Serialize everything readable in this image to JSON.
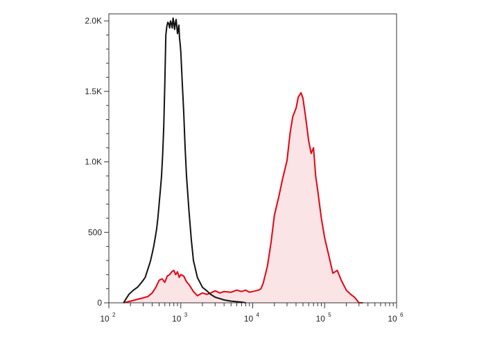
{
  "chart_data": {
    "type": "area",
    "x_scale": "log10",
    "xlim": [
      100,
      1000000
    ],
    "ylim": [
      0,
      2050
    ],
    "grid": false,
    "legend": "none",
    "xlabel": "",
    "ylabel": "",
    "y_ticks": [
      {
        "value": 0,
        "label": "0"
      },
      {
        "value": 500,
        "label": "500"
      },
      {
        "value": 1000,
        "label": "1.0K"
      },
      {
        "value": 1500,
        "label": "1.5K"
      },
      {
        "value": 2000,
        "label": "2.0K"
      }
    ],
    "x_ticks": [
      {
        "value": 100,
        "base": "10",
        "exp": "2"
      },
      {
        "value": 1000,
        "base": "10",
        "exp": "3"
      },
      {
        "value": 10000,
        "base": "10",
        "exp": "4"
      },
      {
        "value": 100000,
        "base": "10",
        "exp": "5"
      },
      {
        "value": 1000000,
        "base": "10",
        "exp": "6"
      }
    ],
    "series": [
      {
        "color": "#e8000f",
        "fill": "#fbe4e6",
        "filled": true,
        "x": [
          160,
          200,
          250,
          300,
          350,
          400,
          450,
          500,
          550,
          600,
          650,
          700,
          750,
          800,
          850,
          900,
          950,
          1000,
          1100,
          1200,
          1300,
          1500,
          1700,
          2000,
          2300,
          2600,
          3000,
          3500,
          4000,
          5000,
          6000,
          7000,
          8000,
          9000,
          10000,
          11000,
          12000,
          13000,
          14000,
          16000,
          18000,
          20000,
          23000,
          26000,
          30000,
          33000,
          36000,
          40000,
          43000,
          47000,
          50000,
          55000,
          60000,
          65000,
          70000,
          75000,
          80000,
          90000,
          100000,
          115000,
          130000,
          150000,
          170000,
          200000,
          230000,
          260000,
          300000,
          340000
        ],
        "y": [
          0,
          12,
          25,
          35,
          45,
          70,
          110,
          160,
          170,
          145,
          190,
          200,
          220,
          230,
          200,
          220,
          180,
          200,
          190,
          150,
          130,
          80,
          50,
          70,
          60,
          70,
          85,
          70,
          80,
          75,
          90,
          80,
          90,
          75,
          80,
          85,
          90,
          100,
          140,
          260,
          430,
          620,
          750,
          880,
          1010,
          1200,
          1320,
          1380,
          1460,
          1490,
          1450,
          1300,
          1150,
          1060,
          1100,
          900,
          800,
          600,
          460,
          330,
          210,
          230,
          160,
          90,
          60,
          40,
          0,
          0
        ]
      },
      {
        "color": "#111111",
        "fill": "none",
        "filled": false,
        "x": [
          160,
          190,
          220,
          250,
          280,
          300,
          320,
          340,
          360,
          380,
          400,
          420,
          440,
          460,
          480,
          500,
          520,
          540,
          560,
          580,
          600,
          620,
          640,
          660,
          680,
          700,
          720,
          740,
          760,
          780,
          800,
          820,
          840,
          860,
          880,
          900,
          920,
          940,
          960,
          980,
          1000,
          1050,
          1100,
          1150,
          1200,
          1300,
          1400,
          1500,
          1700,
          2000,
          2300,
          2600,
          3000,
          3500,
          4000,
          5000,
          6000,
          7000,
          8000
        ],
        "y": [
          0,
          60,
          90,
          110,
          140,
          160,
          180,
          220,
          260,
          300,
          350,
          400,
          460,
          520,
          600,
          700,
          800,
          900,
          1050,
          1250,
          1550,
          1900,
          1960,
          1990,
          1980,
          1950,
          2000,
          1980,
          1950,
          2020,
          1990,
          1940,
          1980,
          2010,
          1960,
          1910,
          1940,
          1970,
          1880,
          1840,
          1780,
          1560,
          1350,
          1100,
          900,
          650,
          450,
          300,
          180,
          110,
          85,
          60,
          40,
          30,
          20,
          12,
          8,
          5,
          0
        ]
      }
    ]
  }
}
